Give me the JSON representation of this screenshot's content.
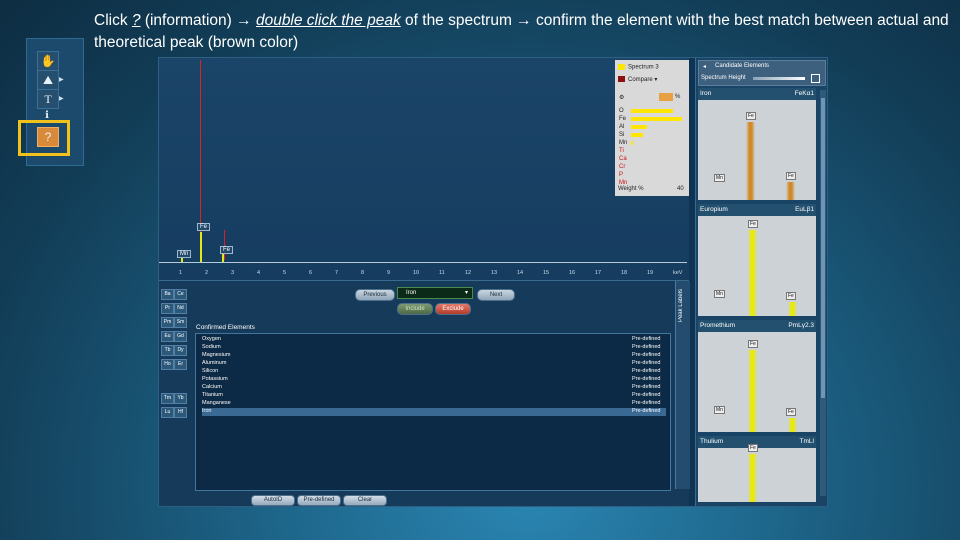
{
  "caption": {
    "part1": "Click ",
    "q": "?",
    "part2": " (information) ",
    "arrow": "→",
    "action": "double click the peak",
    "part3": " of the spectrum ",
    "part4": " confirm the element with the best match between actual and theoretical peak (brown color)"
  },
  "palette": {
    "tools": [
      "hand-icon",
      "mountain-icon",
      "text-icon",
      "info-icon",
      "help-icon"
    ],
    "t_label": "T",
    "q_label": "?"
  },
  "spectrum": {
    "axis_ticks": [
      "1",
      "2",
      "3",
      "4",
      "5",
      "6",
      "7",
      "8",
      "9",
      "10",
      "11",
      "12",
      "13",
      "14",
      "15",
      "16",
      "17",
      "18",
      "19",
      "keV"
    ],
    "peak_labels": {
      "fe": "Fe",
      "mn": "Mn",
      "fe2": "Fe"
    },
    "legend": {
      "spectrum": "Spectrum 3",
      "compare": "Compare",
      "icon_percent": "%",
      "elements": [
        "O",
        "Fe",
        "Al",
        "Si",
        "Mn",
        "Ti",
        "Ca",
        "Cr",
        "P",
        "Mn"
      ],
      "footer_label": "Weight %",
      "footer_value": "40",
      "bars": [
        0.78,
        0.95,
        0.3,
        0.22,
        0.04
      ]
    }
  },
  "candidates": {
    "title": "Candidate Elements",
    "height_label": "Spectrum Height",
    "items": [
      {
        "name": "Iron",
        "line": "FeKα1"
      },
      {
        "name": "Europium",
        "line": "EuLβ1"
      },
      {
        "name": "Promethium",
        "line": "PmLγ2.3"
      },
      {
        "name": "Thulium",
        "line": "TmLl"
      }
    ],
    "peak_tags": {
      "fe": "Fe",
      "mn": "Mn"
    },
    "colors": {
      "brown_peak": "#d28a28",
      "yellow_peak": "#e8ea0a"
    }
  },
  "bottom": {
    "previous": "Previous",
    "selected": "Iron",
    "next": "Next",
    "include": "Include",
    "exclude": "Exclude",
    "periodic_buttons": [
      "Ba",
      "Ce",
      "Pr",
      "Nd",
      "Pm",
      "Sm",
      "Eu",
      "Gd",
      "Tb",
      "Dy",
      "Ho",
      "Er",
      "Tm",
      "Yb",
      "Lu",
      "Hf"
    ],
    "confirmed_header": "Confirmed Elements",
    "confirmed": [
      {
        "name": "Oxygen",
        "status": "Pre-defined"
      },
      {
        "name": "Sodium",
        "status": "Pre-defined"
      },
      {
        "name": "Magnesium",
        "status": "Pre-defined"
      },
      {
        "name": "Aluminum",
        "status": "Pre-defined"
      },
      {
        "name": "Silicon",
        "status": "Pre-defined"
      },
      {
        "name": "Potassium",
        "status": "Pre-defined"
      },
      {
        "name": "Calcium",
        "status": "Pre-defined"
      },
      {
        "name": "Titanium",
        "status": "Pre-defined"
      },
      {
        "name": "Manganese",
        "status": "Pre-defined"
      },
      {
        "name": "Iron",
        "status": "Pre-defined"
      }
    ],
    "peak_labels": "Peak Labels",
    "auto_id": "AutoID",
    "pre_defined": "Pre-defined",
    "clear": "Clear"
  }
}
